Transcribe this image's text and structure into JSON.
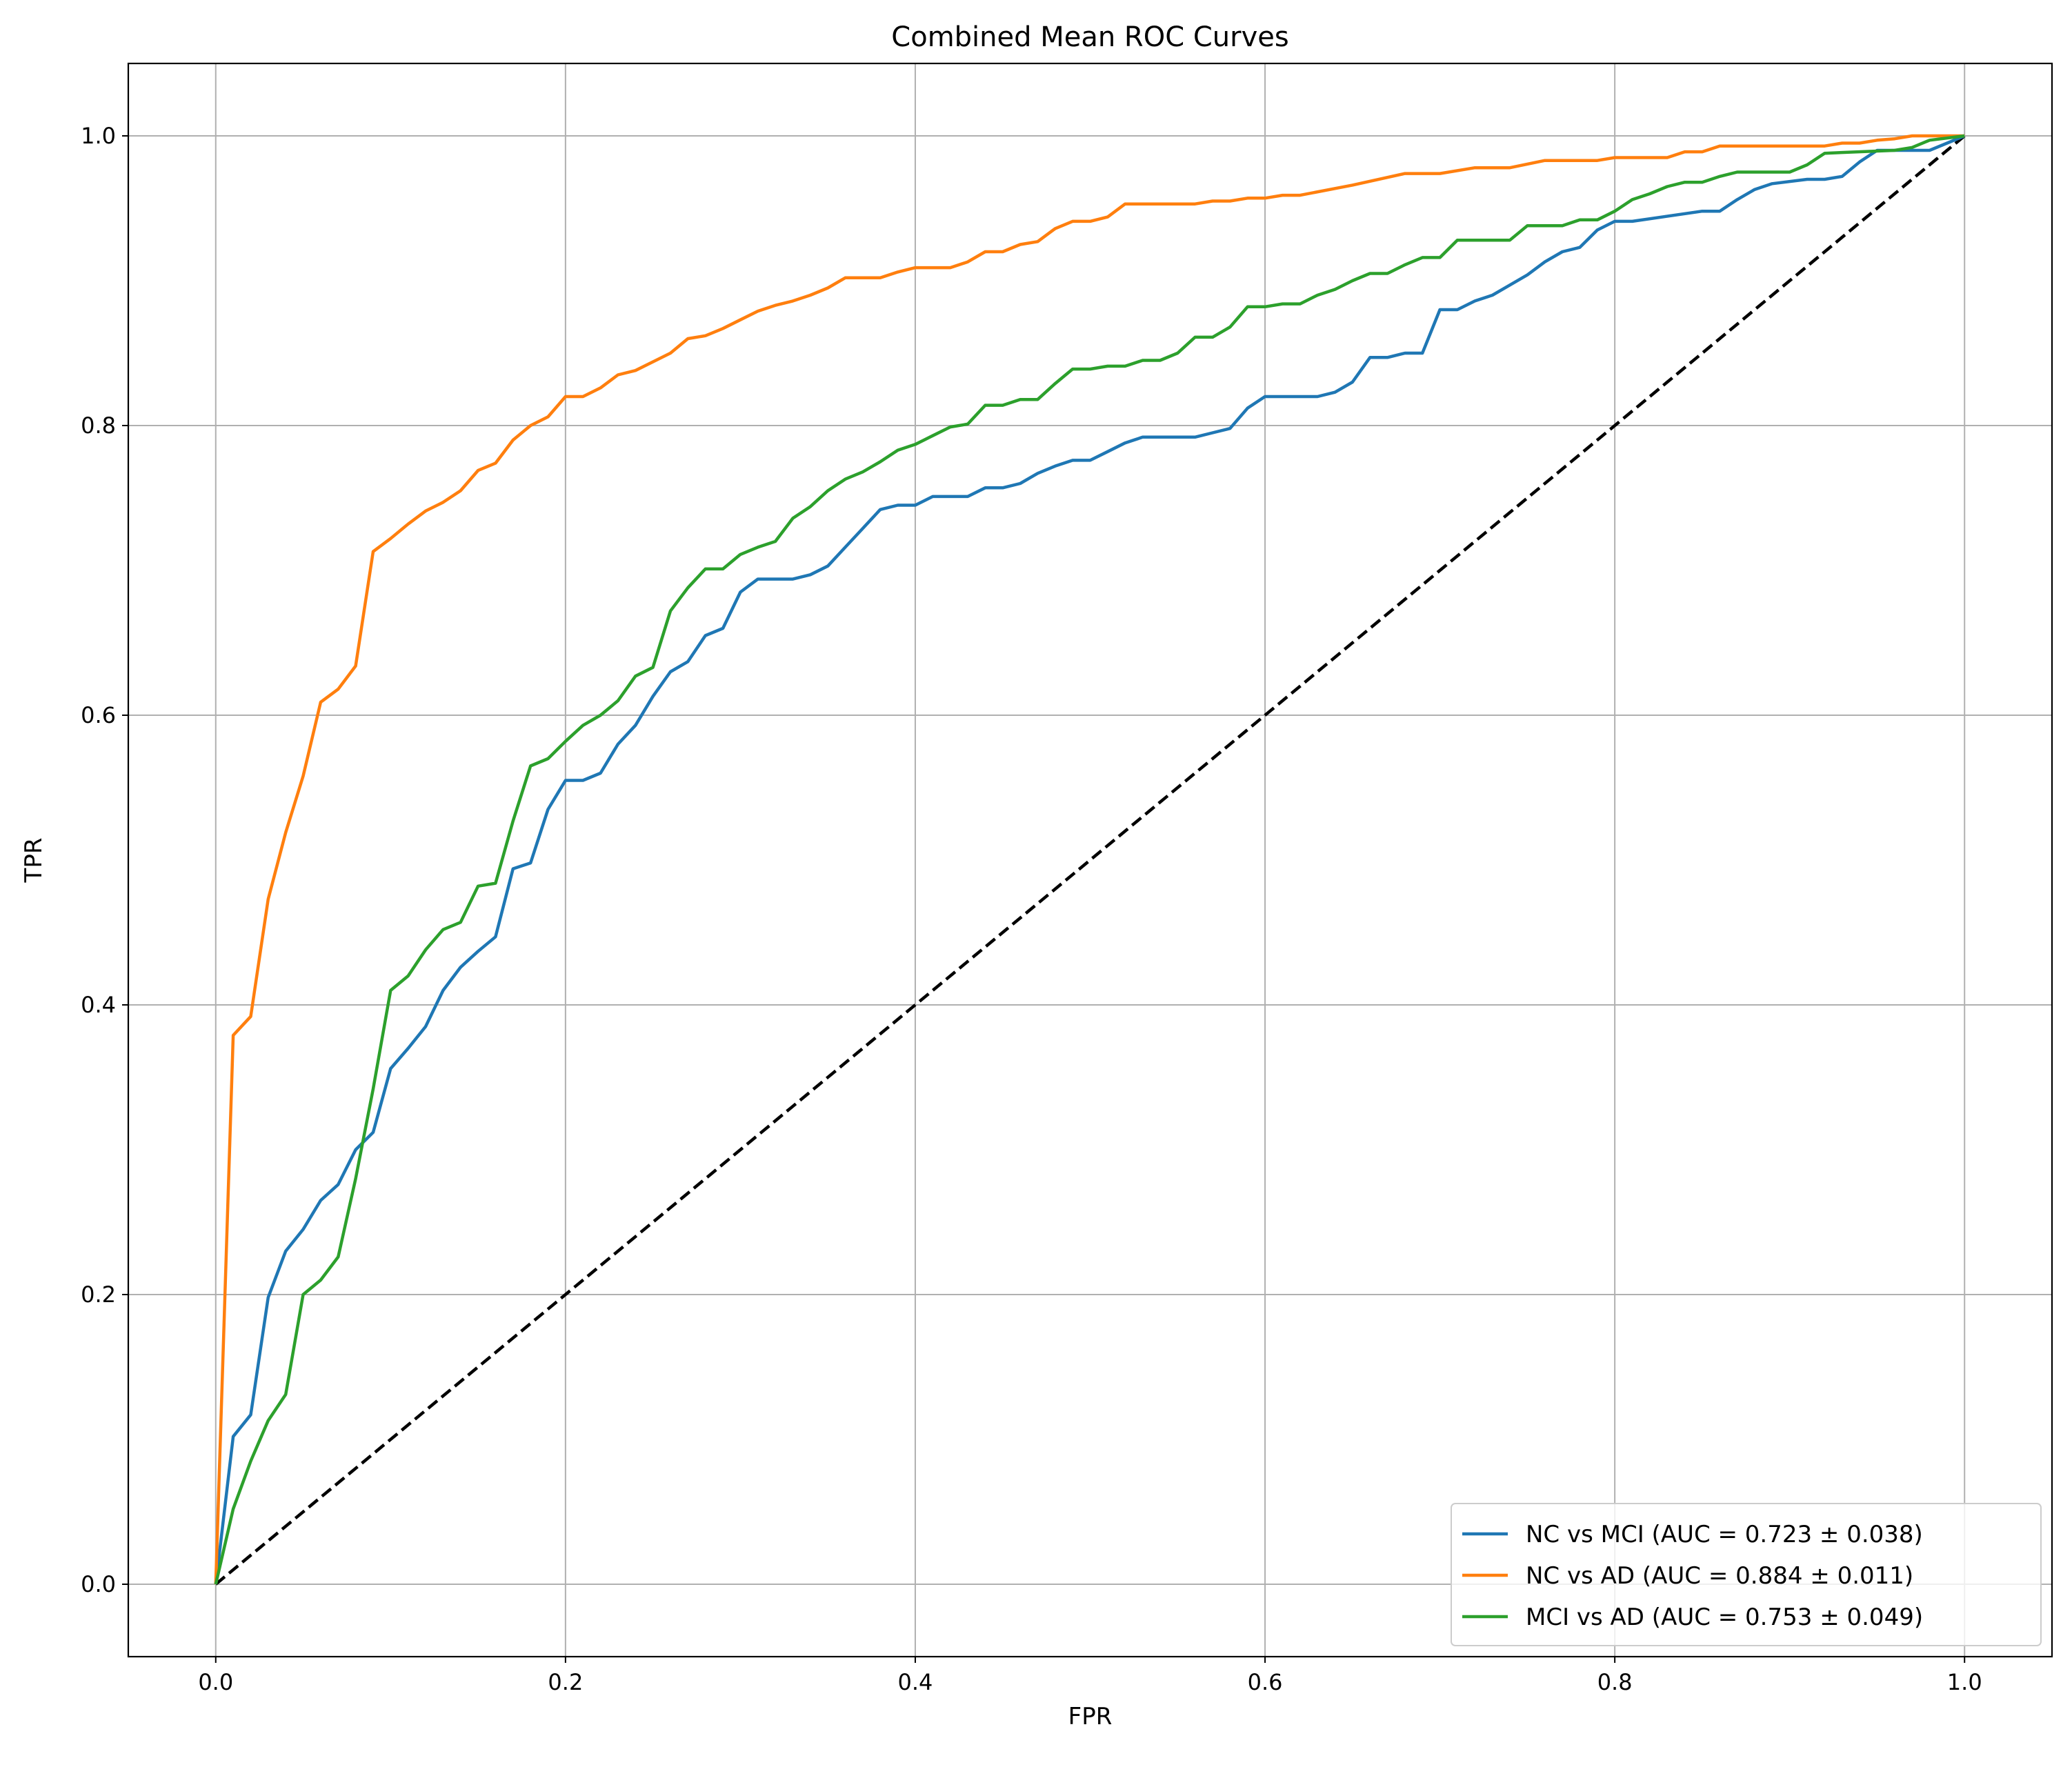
{
  "chart_data": {
    "type": "line",
    "title": "Combined Mean ROC Curves",
    "xlabel": "FPR",
    "ylabel": "TPR",
    "xlim": [
      -0.05,
      1.05
    ],
    "ylim": [
      -0.05,
      1.05
    ],
    "xticks": [
      0.0,
      0.2,
      0.4,
      0.6,
      0.8,
      1.0
    ],
    "yticks": [
      0.0,
      0.2,
      0.4,
      0.6,
      0.8,
      1.0
    ],
    "xtick_labels": [
      "0.0",
      "0.2",
      "0.4",
      "0.6",
      "0.8",
      "1.0"
    ],
    "ytick_labels": [
      "0.0",
      "0.2",
      "0.4",
      "0.6",
      "0.8",
      "1.0"
    ],
    "grid": true,
    "legend_position": "bottom-right",
    "series": [
      {
        "name": "NC vs MCI (AUC = 0.723 ± 0.038)",
        "color": "#1f77b4",
        "x": [
          0.0,
          0.01,
          0.02,
          0.03,
          0.04,
          0.05,
          0.06,
          0.07,
          0.08,
          0.09,
          0.1,
          0.11,
          0.12,
          0.13,
          0.14,
          0.15,
          0.16,
          0.17,
          0.18,
          0.19,
          0.2,
          0.21,
          0.22,
          0.23,
          0.24,
          0.25,
          0.26,
          0.27,
          0.28,
          0.29,
          0.3,
          0.31,
          0.33,
          0.34,
          0.35,
          0.36,
          0.37,
          0.38,
          0.39,
          0.4,
          0.41,
          0.43,
          0.44,
          0.45,
          0.46,
          0.47,
          0.48,
          0.49,
          0.5,
          0.51,
          0.52,
          0.53,
          0.56,
          0.57,
          0.58,
          0.59,
          0.6,
          0.63,
          0.64,
          0.65,
          0.66,
          0.67,
          0.68,
          0.69,
          0.7,
          0.71,
          0.72,
          0.73,
          0.74,
          0.75,
          0.76,
          0.77,
          0.78,
          0.79,
          0.8,
          0.81,
          0.85,
          0.86,
          0.87,
          0.88,
          0.89,
          0.91,
          0.92,
          0.93,
          0.94,
          0.95,
          0.97,
          0.98,
          0.99,
          1.0
        ],
        "y": [
          0.0,
          0.102,
          0.117,
          0.198,
          0.23,
          0.245,
          0.265,
          0.276,
          0.3,
          0.312,
          0.356,
          0.37,
          0.385,
          0.41,
          0.426,
          0.437,
          0.447,
          0.494,
          0.498,
          0.535,
          0.555,
          0.555,
          0.56,
          0.58,
          0.593,
          0.613,
          0.63,
          0.637,
          0.655,
          0.66,
          0.685,
          0.694,
          0.694,
          0.697,
          0.703,
          0.716,
          0.729,
          0.742,
          0.745,
          0.745,
          0.751,
          0.751,
          0.757,
          0.757,
          0.76,
          0.767,
          0.772,
          0.776,
          0.776,
          0.782,
          0.788,
          0.792,
          0.792,
          0.795,
          0.798,
          0.812,
          0.82,
          0.82,
          0.823,
          0.83,
          0.847,
          0.847,
          0.85,
          0.85,
          0.88,
          0.88,
          0.886,
          0.89,
          0.897,
          0.904,
          0.913,
          0.92,
          0.923,
          0.935,
          0.941,
          0.941,
          0.948,
          0.948,
          0.956,
          0.963,
          0.967,
          0.97,
          0.97,
          0.972,
          0.982,
          0.99,
          0.99,
          0.99,
          0.995,
          1.0
        ]
      },
      {
        "name": "NC vs AD (AUC = 0.884 ± 0.011)",
        "color": "#ff7f0e",
        "x": [
          0.0,
          0.01,
          0.02,
          0.03,
          0.04,
          0.05,
          0.06,
          0.07,
          0.08,
          0.09,
          0.1,
          0.11,
          0.12,
          0.13,
          0.14,
          0.15,
          0.16,
          0.17,
          0.18,
          0.19,
          0.2,
          0.21,
          0.22,
          0.23,
          0.24,
          0.25,
          0.26,
          0.27,
          0.28,
          0.29,
          0.3,
          0.31,
          0.32,
          0.33,
          0.34,
          0.35,
          0.36,
          0.38,
          0.39,
          0.4,
          0.42,
          0.43,
          0.44,
          0.45,
          0.46,
          0.47,
          0.48,
          0.49,
          0.5,
          0.51,
          0.52,
          0.56,
          0.57,
          0.58,
          0.59,
          0.6,
          0.61,
          0.62,
          0.65,
          0.68,
          0.7,
          0.72,
          0.74,
          0.76,
          0.79,
          0.8,
          0.83,
          0.84,
          0.85,
          0.86,
          0.92,
          0.93,
          0.94,
          0.95,
          0.96,
          0.97,
          1.0
        ],
        "y": [
          0.0,
          0.379,
          0.392,
          0.473,
          0.519,
          0.558,
          0.609,
          0.618,
          0.634,
          0.713,
          0.722,
          0.732,
          0.741,
          0.747,
          0.755,
          0.769,
          0.774,
          0.79,
          0.8,
          0.806,
          0.82,
          0.82,
          0.826,
          0.835,
          0.838,
          0.844,
          0.85,
          0.86,
          0.862,
          0.867,
          0.873,
          0.879,
          0.883,
          0.886,
          0.89,
          0.895,
          0.902,
          0.902,
          0.906,
          0.909,
          0.909,
          0.913,
          0.92,
          0.92,
          0.925,
          0.927,
          0.936,
          0.941,
          0.941,
          0.944,
          0.953,
          0.953,
          0.955,
          0.955,
          0.957,
          0.957,
          0.959,
          0.959,
          0.966,
          0.974,
          0.974,
          0.978,
          0.978,
          0.983,
          0.983,
          0.985,
          0.985,
          0.989,
          0.989,
          0.993,
          0.993,
          0.995,
          0.995,
          0.997,
          0.998,
          1.0,
          1.0
        ]
      },
      {
        "name": "MCI vs AD (AUC = 0.753 ± 0.049)",
        "color": "#2ca02c",
        "x": [
          0.0,
          0.01,
          0.02,
          0.03,
          0.04,
          0.05,
          0.06,
          0.07,
          0.08,
          0.09,
          0.1,
          0.11,
          0.12,
          0.13,
          0.14,
          0.15,
          0.16,
          0.17,
          0.18,
          0.19,
          0.2,
          0.21,
          0.22,
          0.23,
          0.24,
          0.25,
          0.26,
          0.27,
          0.28,
          0.29,
          0.3,
          0.31,
          0.32,
          0.33,
          0.34,
          0.35,
          0.36,
          0.37,
          0.38,
          0.39,
          0.4,
          0.41,
          0.42,
          0.43,
          0.44,
          0.45,
          0.46,
          0.47,
          0.48,
          0.49,
          0.5,
          0.51,
          0.52,
          0.53,
          0.54,
          0.55,
          0.56,
          0.57,
          0.58,
          0.59,
          0.6,
          0.61,
          0.62,
          0.63,
          0.64,
          0.65,
          0.66,
          0.67,
          0.68,
          0.69,
          0.7,
          0.71,
          0.74,
          0.75,
          0.77,
          0.78,
          0.79,
          0.8,
          0.81,
          0.82,
          0.83,
          0.84,
          0.85,
          0.86,
          0.87,
          0.9,
          0.91,
          0.92,
          0.96,
          0.97,
          0.98,
          1.0
        ],
        "y": [
          0.0,
          0.052,
          0.085,
          0.113,
          0.131,
          0.2,
          0.21,
          0.226,
          0.28,
          0.342,
          0.41,
          0.42,
          0.438,
          0.452,
          0.457,
          0.482,
          0.484,
          0.527,
          0.565,
          0.57,
          0.582,
          0.593,
          0.6,
          0.61,
          0.627,
          0.633,
          0.672,
          0.688,
          0.701,
          0.701,
          0.711,
          0.716,
          0.72,
          0.736,
          0.744,
          0.755,
          0.763,
          0.768,
          0.775,
          0.783,
          0.787,
          0.793,
          0.799,
          0.801,
          0.814,
          0.814,
          0.818,
          0.818,
          0.829,
          0.839,
          0.839,
          0.841,
          0.841,
          0.845,
          0.845,
          0.85,
          0.861,
          0.861,
          0.868,
          0.882,
          0.882,
          0.884,
          0.884,
          0.89,
          0.894,
          0.9,
          0.905,
          0.905,
          0.911,
          0.916,
          0.916,
          0.928,
          0.928,
          0.938,
          0.938,
          0.942,
          0.942,
          0.948,
          0.956,
          0.96,
          0.965,
          0.968,
          0.968,
          0.972,
          0.975,
          0.975,
          0.98,
          0.988,
          0.99,
          0.992,
          0.997,
          1.0
        ]
      }
    ],
    "reference_line": {
      "style": "dashed",
      "color": "#000000",
      "x": [
        0.0,
        1.0
      ],
      "y": [
        0.0,
        1.0
      ]
    }
  }
}
